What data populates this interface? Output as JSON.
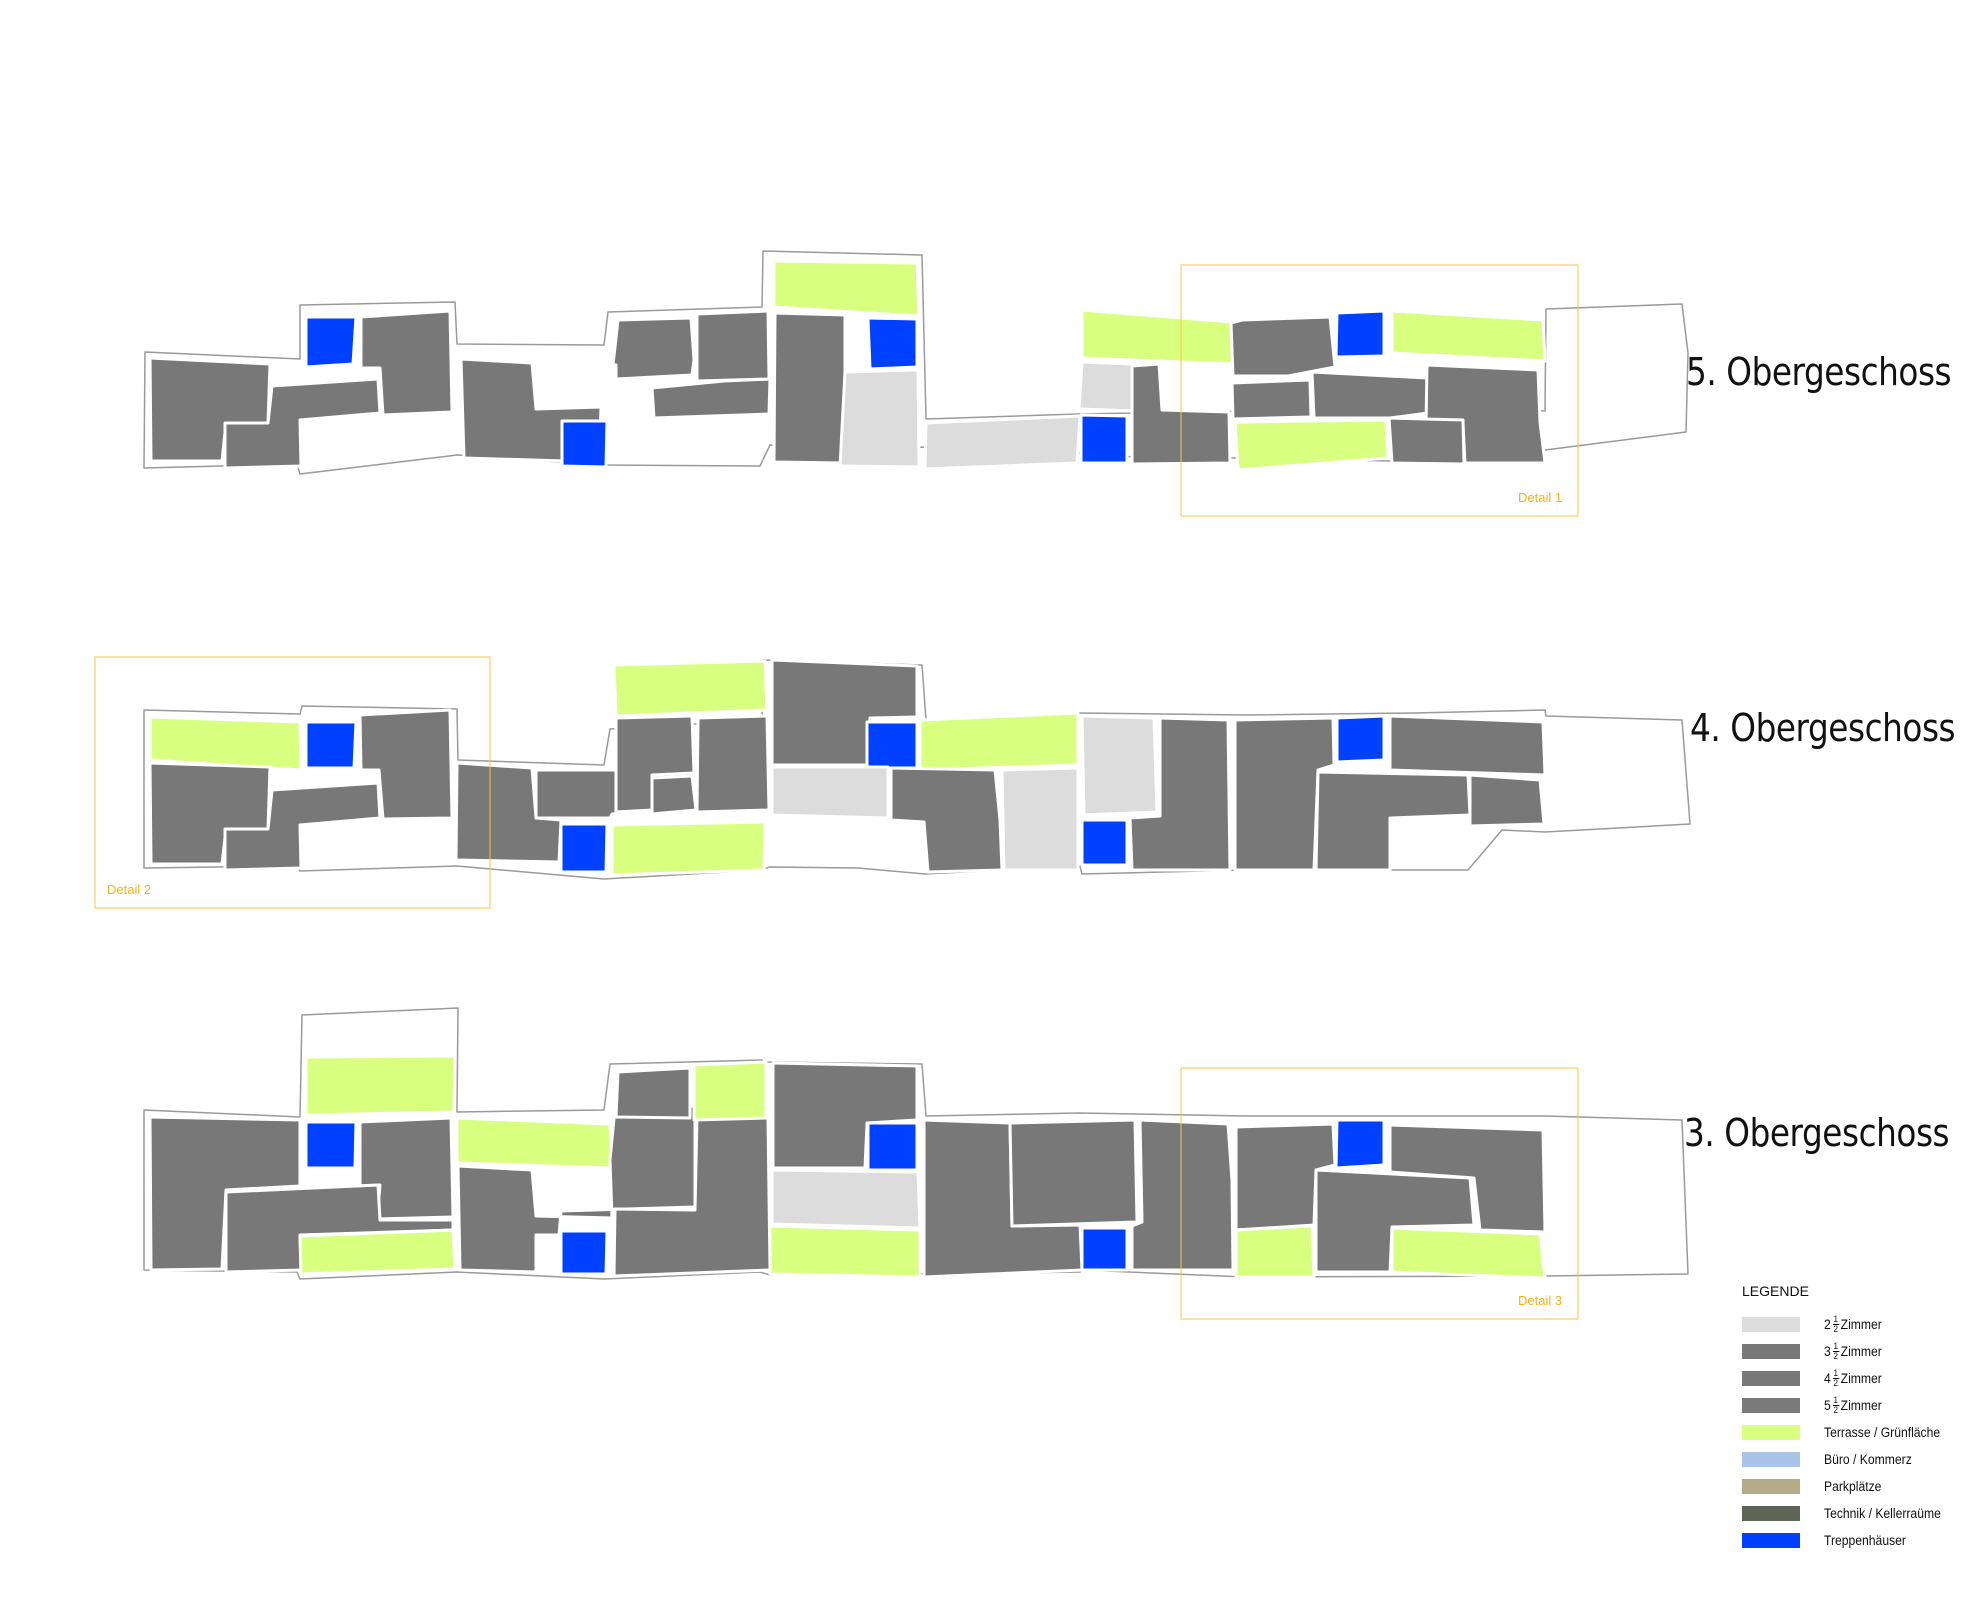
{
  "floors": [
    {
      "id": "og5",
      "label": "5. Obergeschoss"
    },
    {
      "id": "og4",
      "label": "4. Obergeschoss"
    },
    {
      "id": "og3",
      "label": "3. Obergeschoss"
    }
  ],
  "details": [
    {
      "id": "detail1",
      "label": "Detail 1"
    },
    {
      "id": "detail2",
      "label": "Detail 2"
    },
    {
      "id": "detail3",
      "label": "Detail 3"
    }
  ],
  "legend": {
    "title": "LEGENDE",
    "items": [
      {
        "id": "z25",
        "whole": "2",
        "num": "1",
        "den": "2",
        "text": "Zimmer",
        "color": "#dcdcdc"
      },
      {
        "id": "z35",
        "whole": "3",
        "num": "1",
        "den": "2",
        "text": "Zimmer",
        "color": "#787878"
      },
      {
        "id": "z45",
        "whole": "4",
        "num": "1",
        "den": "2",
        "text": "Zimmer",
        "color": "#787878"
      },
      {
        "id": "z55",
        "whole": "5",
        "num": "1",
        "den": "2",
        "text": "Zimmer",
        "color": "#7a7a7a"
      },
      {
        "id": "terrasse",
        "text": "Terrasse / Grünfläche",
        "color": "#d9ff80"
      },
      {
        "id": "buero",
        "text": "Büro / Kommerz",
        "color": "#a9c4e6"
      },
      {
        "id": "park",
        "text": "Parkplätze",
        "color": "#b3ac86"
      },
      {
        "id": "technik",
        "text": "Technik / Kellerraüme",
        "color": "#5f6457"
      },
      {
        "id": "treppen",
        "text": "Treppenhäuser",
        "color": "#0040ff"
      }
    ]
  },
  "colors": {
    "dark": "#787878",
    "light": "#dcdcdc",
    "green": "#d9ff80",
    "blue": "#0040ff",
    "detail": "#f5c542"
  }
}
